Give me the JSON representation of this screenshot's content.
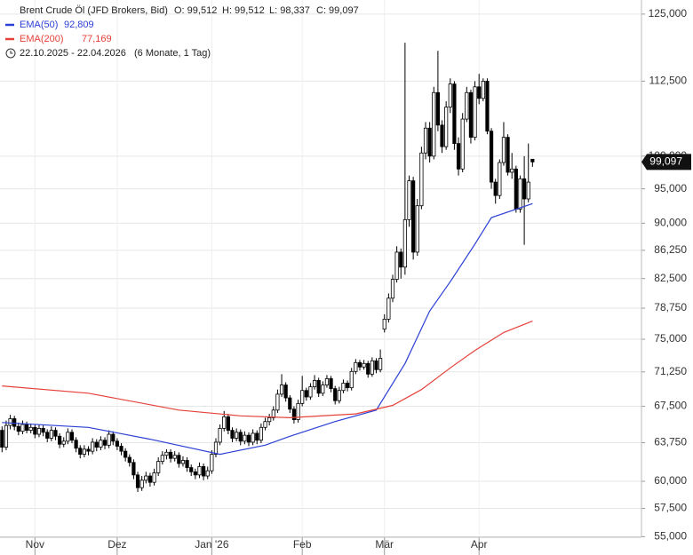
{
  "chart_data": {
    "type": "candlestick",
    "title": "Brent Crude Öl (JFD Brokers, Bid)",
    "ohlc_text": [
      "O: 99,512",
      "H: 99,512",
      "L: 98,337",
      "C: 99,097"
    ],
    "period": "22.10.2025 - 22.04.2026",
    "period_note": "(6 Monate, 1 Tag)",
    "log_scale": true,
    "grid": true,
    "up_color": "#ffffff",
    "down_color": "#000000",
    "ylim": [
      54.95,
      127.8
    ],
    "yticks": [
      {
        "value": 55,
        "label": "55,000"
      },
      {
        "value": 57.5,
        "label": "57,500"
      },
      {
        "value": 60,
        "label": "60,000"
      },
      {
        "value": 63.75,
        "label": "63,750"
      },
      {
        "value": 67.5,
        "label": "67,500"
      },
      {
        "value": 71.25,
        "label": "71,250"
      },
      {
        "value": 75,
        "label": "75,000"
      },
      {
        "value": 78.75,
        "label": "78,750"
      },
      {
        "value": 82.5,
        "label": "82,500"
      },
      {
        "value": 86.25,
        "label": "86,250"
      },
      {
        "value": 90,
        "label": "90,000"
      },
      {
        "value": 95,
        "label": "95,000"
      },
      {
        "value": 100,
        "label": "100,000"
      },
      {
        "value": 112.5,
        "label": "112,500"
      },
      {
        "value": 125,
        "label": "125,000"
      }
    ],
    "xlim": [
      -0.5,
      155.5
    ],
    "xticks": [
      {
        "value": 8,
        "label": "Nov"
      },
      {
        "value": 28,
        "label": "Dez"
      },
      {
        "value": 51,
        "label": "Jan '26"
      },
      {
        "value": 73,
        "label": "Feb"
      },
      {
        "value": 93,
        "label": "Mär"
      },
      {
        "value": 116,
        "label": "Apr"
      }
    ],
    "last_price": {
      "value": 99.097,
      "label": "99,097"
    },
    "candles": [
      [
        65.0,
        65.4,
        62.8,
        63.3
      ],
      [
        63.3,
        66.0,
        63.0,
        65.5
      ],
      [
        65.5,
        66.6,
        65.1,
        66.2
      ],
      [
        66.2,
        66.5,
        65.0,
        65.4
      ],
      [
        65.4,
        65.8,
        64.5,
        64.9
      ],
      [
        64.9,
        66.0,
        64.6,
        65.6
      ],
      [
        65.6,
        65.9,
        64.7,
        65.0
      ],
      [
        65.0,
        65.7,
        64.7,
        65.3
      ],
      [
        65.3,
        65.6,
        64.2,
        64.6
      ],
      [
        64.6,
        65.6,
        64.3,
        65.2
      ],
      [
        65.2,
        65.5,
        64.4,
        64.8
      ],
      [
        64.8,
        65.1,
        63.8,
        64.2
      ],
      [
        64.2,
        65.4,
        63.9,
        65.0
      ],
      [
        65.0,
        65.3,
        64.0,
        64.4
      ],
      [
        64.4,
        64.7,
        63.2,
        63.6
      ],
      [
        63.6,
        64.3,
        63.3,
        63.9
      ],
      [
        63.9,
        65.2,
        63.6,
        64.8
      ],
      [
        64.8,
        65.1,
        63.7,
        64.0
      ],
      [
        64.0,
        64.3,
        62.8,
        63.2
      ],
      [
        63.2,
        63.5,
        62.2,
        62.6
      ],
      [
        62.6,
        63.5,
        62.3,
        63.1
      ],
      [
        63.1,
        63.4,
        62.5,
        62.9
      ],
      [
        62.9,
        64.2,
        62.6,
        63.8
      ],
      [
        63.8,
        64.1,
        62.9,
        63.3
      ],
      [
        63.3,
        64.4,
        63.0,
        64.0
      ],
      [
        64.0,
        64.3,
        63.1,
        63.5
      ],
      [
        63.5,
        65.0,
        63.2,
        64.6
      ],
      [
        64.6,
        64.9,
        63.5,
        63.9
      ],
      [
        63.9,
        64.2,
        63.0,
        63.4
      ],
      [
        63.4,
        63.7,
        62.5,
        62.9
      ],
      [
        62.9,
        63.2,
        61.9,
        62.3
      ],
      [
        62.3,
        62.6,
        61.4,
        61.8
      ],
      [
        61.8,
        62.1,
        60.2,
        60.6
      ],
      [
        60.6,
        60.9,
        59.0,
        59.4
      ],
      [
        59.4,
        60.5,
        59.1,
        60.1
      ],
      [
        60.1,
        60.9,
        59.8,
        60.5
      ],
      [
        60.5,
        60.8,
        59.5,
        59.9
      ],
      [
        59.9,
        61.2,
        59.6,
        60.8
      ],
      [
        60.8,
        62.3,
        60.5,
        61.9
      ],
      [
        61.9,
        62.9,
        61.6,
        62.5
      ],
      [
        62.5,
        63.1,
        62.1,
        62.8
      ],
      [
        62.8,
        63.1,
        61.8,
        62.2
      ],
      [
        62.2,
        62.9,
        61.9,
        62.5
      ],
      [
        62.5,
        62.8,
        61.3,
        61.7
      ],
      [
        61.7,
        62.4,
        61.4,
        62.0
      ],
      [
        62.0,
        62.3,
        60.9,
        61.3
      ],
      [
        61.3,
        61.6,
        60.5,
        60.9
      ],
      [
        60.9,
        61.2,
        60.2,
        60.6
      ],
      [
        60.6,
        61.8,
        60.3,
        61.4
      ],
      [
        61.4,
        61.7,
        60.1,
        60.5
      ],
      [
        60.5,
        61.4,
        60.2,
        61.0
      ],
      [
        61.0,
        63.0,
        60.7,
        62.6
      ],
      [
        62.6,
        64.2,
        62.3,
        63.8
      ],
      [
        63.8,
        65.6,
        63.5,
        65.2
      ],
      [
        65.2,
        67.0,
        64.9,
        66.4
      ],
      [
        66.4,
        66.7,
        64.6,
        65.0
      ],
      [
        65.0,
        65.3,
        63.8,
        64.2
      ],
      [
        64.2,
        65.2,
        63.9,
        64.8
      ],
      [
        64.8,
        65.1,
        63.5,
        63.9
      ],
      [
        63.9,
        64.9,
        63.6,
        64.5
      ],
      [
        64.5,
        64.8,
        63.4,
        63.8
      ],
      [
        63.8,
        65.1,
        63.5,
        64.7
      ],
      [
        64.7,
        65.0,
        63.6,
        64.0
      ],
      [
        64.0,
        65.7,
        63.7,
        65.3
      ],
      [
        65.3,
        66.3,
        65.0,
        65.9
      ],
      [
        65.9,
        66.7,
        65.5,
        66.3
      ],
      [
        66.3,
        67.5,
        66.0,
        67.1
      ],
      [
        67.1,
        69.3,
        66.8,
        68.8
      ],
      [
        68.8,
        71.0,
        68.5,
        69.8
      ],
      [
        69.8,
        70.1,
        68.0,
        68.4
      ],
      [
        68.4,
        68.7,
        66.8,
        67.2
      ],
      [
        67.2,
        67.5,
        65.7,
        66.1
      ],
      [
        66.1,
        68.2,
        65.8,
        67.8
      ],
      [
        67.8,
        70.8,
        67.5,
        69.2
      ],
      [
        69.2,
        69.5,
        68.1,
        68.5
      ],
      [
        68.5,
        70.0,
        68.2,
        69.6
      ],
      [
        69.6,
        70.9,
        69.3,
        70.3
      ],
      [
        70.3,
        70.6,
        68.5,
        68.9
      ],
      [
        68.9,
        70.2,
        68.6,
        69.8
      ],
      [
        69.8,
        70.9,
        69.5,
        70.5
      ],
      [
        70.5,
        70.8,
        69.0,
        69.4
      ],
      [
        69.4,
        69.7,
        67.7,
        68.1
      ],
      [
        68.1,
        69.6,
        67.8,
        69.2
      ],
      [
        69.2,
        70.4,
        68.9,
        70.0
      ],
      [
        70.0,
        70.3,
        69.1,
        69.5
      ],
      [
        69.5,
        71.7,
        69.2,
        71.3
      ],
      [
        71.3,
        72.7,
        71.0,
        72.3
      ],
      [
        72.3,
        72.6,
        71.4,
        71.8
      ],
      [
        71.8,
        72.6,
        71.5,
        72.2
      ],
      [
        72.2,
        72.5,
        70.6,
        71.0
      ],
      [
        71.0,
        72.9,
        70.7,
        72.5
      ],
      [
        72.5,
        72.8,
        71.1,
        71.5
      ],
      [
        71.5,
        73.8,
        71.2,
        72.8
      ],
      [
        76.2,
        78.0,
        75.8,
        77.4
      ],
      [
        77.4,
        80.6,
        77.0,
        80.0
      ],
      [
        80.0,
        83.0,
        79.5,
        82.4
      ],
      [
        82.4,
        86.8,
        82.0,
        86.0
      ],
      [
        86.0,
        86.5,
        82.5,
        84.0
      ],
      [
        84.0,
        119.5,
        83.0,
        90.5
      ],
      [
        90.5,
        97.0,
        89.5,
        96.2
      ],
      [
        96.2,
        96.8,
        85.0,
        86.0
      ],
      [
        86.0,
        93.5,
        85.5,
        92.5
      ],
      [
        92.5,
        101.5,
        92.0,
        100.5
      ],
      [
        100.5,
        105.5,
        99.5,
        104.5
      ],
      [
        104.5,
        105.5,
        99.0,
        100.0
      ],
      [
        100.0,
        111.5,
        99.5,
        110.5
      ],
      [
        110.5,
        118.0,
        104.0,
        105.0
      ],
      [
        105.0,
        105.8,
        100.5,
        101.5
      ],
      [
        101.5,
        109.0,
        101.0,
        108.0
      ],
      [
        108.0,
        113.0,
        107.0,
        112.0
      ],
      [
        112.0,
        112.5,
        101.0,
        102.0
      ],
      [
        102.0,
        103.0,
        97.0,
        98.0
      ],
      [
        98.0,
        107.0,
        97.5,
        106.0
      ],
      [
        106.0,
        111.5,
        105.5,
        110.5
      ],
      [
        110.5,
        111.0,
        102.0,
        103.0
      ],
      [
        103.0,
        112.5,
        102.5,
        111.5
      ],
      [
        111.5,
        113.8,
        108.5,
        109.5
      ],
      [
        109.5,
        113.0,
        109.0,
        112.5
      ],
      [
        112.5,
        113.0,
        103.5,
        104.0
      ],
      [
        104.0,
        104.5,
        95.0,
        96.0
      ],
      [
        96.0,
        96.5,
        92.8,
        94.0
      ],
      [
        94.0,
        99.5,
        93.5,
        99.0
      ],
      [
        99.0,
        105.5,
        98.5,
        103.0
      ],
      [
        103.0,
        103.5,
        97.0,
        97.5
      ],
      [
        97.5,
        100.5,
        96.5,
        98.0
      ],
      [
        98.0,
        98.5,
        91.5,
        92.0
      ],
      [
        92.0,
        97.0,
        91.5,
        96.5
      ],
      [
        96.5,
        100.0,
        87.0,
        93.5
      ],
      [
        93.5,
        102.0,
        93.0,
        96.0
      ],
      [
        99.512,
        99.512,
        98.337,
        99.097
      ]
    ],
    "series": [
      {
        "name": "EMA(50)",
        "value_label": "92,809",
        "color": "#2b3fd4",
        "x": [
          0,
          21,
          36,
          53,
          64,
          70,
          81,
          91,
          98,
          104,
          109,
          115,
          119,
          129
        ],
        "values": [
          65.8,
          65.3,
          64.1,
          62.6,
          63.5,
          64.4,
          65.9,
          67.1,
          72.2,
          78.4,
          82.1,
          87.1,
          90.8,
          92.809
        ]
      },
      {
        "name": "EMA(200)",
        "value_label": "77,169",
        "color": "#e5413a",
        "x": [
          0,
          21,
          43,
          58,
          70,
          86,
          95,
          102,
          109,
          115,
          122,
          129
        ],
        "values": [
          69.7,
          68.9,
          67.1,
          66.5,
          66.3,
          66.7,
          67.6,
          69.3,
          71.7,
          73.7,
          75.8,
          77.169
        ]
      }
    ]
  }
}
